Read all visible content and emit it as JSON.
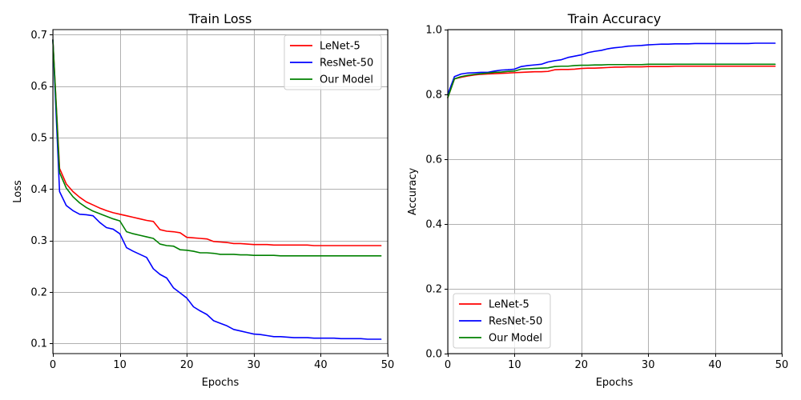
{
  "chart_data": [
    {
      "type": "line",
      "title": "Train Loss",
      "xlabel": "Epochs",
      "ylabel": "Loss",
      "xlim": [
        0,
        50
      ],
      "ylim": [
        0.08,
        0.71
      ],
      "xticks": [
        0,
        10,
        20,
        30,
        40,
        50
      ],
      "yticks": [
        0.1,
        0.2,
        0.3,
        0.4,
        0.5,
        0.6,
        0.7
      ],
      "xtick_labels": [
        "0",
        "10",
        "20",
        "30",
        "40",
        "50"
      ],
      "ytick_labels": [
        "0.1",
        "0.2",
        "0.3",
        "0.4",
        "0.5",
        "0.6",
        "0.7"
      ],
      "grid": true,
      "legend_position": "top-right",
      "x": [
        0,
        1,
        2,
        3,
        4,
        5,
        6,
        7,
        8,
        9,
        10,
        11,
        12,
        13,
        14,
        15,
        16,
        17,
        18,
        19,
        20,
        21,
        22,
        23,
        24,
        25,
        26,
        27,
        28,
        29,
        30,
        31,
        32,
        33,
        34,
        35,
        36,
        37,
        38,
        39,
        40,
        41,
        42,
        43,
        44,
        45,
        46,
        47,
        48,
        49
      ],
      "series": [
        {
          "name": "LeNet-5",
          "color": "#ff0000",
          "values": [
            0.69,
            0.44,
            0.41,
            0.395,
            0.384,
            0.375,
            0.369,
            0.363,
            0.358,
            0.354,
            0.351,
            0.348,
            0.345,
            0.342,
            0.339,
            0.337,
            0.321,
            0.318,
            0.317,
            0.315,
            0.306,
            0.305,
            0.304,
            0.303,
            0.298,
            0.297,
            0.296,
            0.294,
            0.294,
            0.293,
            0.292,
            0.292,
            0.292,
            0.291,
            0.291,
            0.291,
            0.291,
            0.291,
            0.291,
            0.29,
            0.29,
            0.29,
            0.29,
            0.29,
            0.29,
            0.29,
            0.29,
            0.29,
            0.29,
            0.29
          ]
        },
        {
          "name": "ResNet-50",
          "color": "#0000ff",
          "values": [
            0.69,
            0.395,
            0.368,
            0.358,
            0.351,
            0.35,
            0.348,
            0.335,
            0.325,
            0.322,
            0.313,
            0.286,
            0.279,
            0.273,
            0.267,
            0.245,
            0.234,
            0.227,
            0.208,
            0.198,
            0.188,
            0.171,
            0.163,
            0.156,
            0.144,
            0.139,
            0.134,
            0.127,
            0.124,
            0.121,
            0.118,
            0.117,
            0.115,
            0.113,
            0.113,
            0.112,
            0.111,
            0.111,
            0.111,
            0.11,
            0.11,
            0.11,
            0.11,
            0.109,
            0.109,
            0.109,
            0.109,
            0.108,
            0.108,
            0.108
          ]
        },
        {
          "name": "Our Model",
          "color": "#008000",
          "values": [
            0.69,
            0.432,
            0.402,
            0.385,
            0.373,
            0.364,
            0.357,
            0.352,
            0.347,
            0.342,
            0.338,
            0.317,
            0.313,
            0.31,
            0.307,
            0.304,
            0.293,
            0.29,
            0.289,
            0.282,
            0.281,
            0.279,
            0.276,
            0.276,
            0.275,
            0.273,
            0.273,
            0.273,
            0.272,
            0.272,
            0.271,
            0.271,
            0.271,
            0.271,
            0.27,
            0.27,
            0.27,
            0.27,
            0.27,
            0.27,
            0.27,
            0.27,
            0.27,
            0.27,
            0.27,
            0.27,
            0.27,
            0.27,
            0.27,
            0.27
          ]
        }
      ]
    },
    {
      "type": "line",
      "title": "Train Accuracy",
      "xlabel": "Epochs",
      "ylabel": "Accuracy",
      "xlim": [
        0,
        50
      ],
      "ylim": [
        0.0,
        1.0
      ],
      "xticks": [
        0,
        10,
        20,
        30,
        40,
        50
      ],
      "yticks": [
        0.0,
        0.2,
        0.4,
        0.6,
        0.8,
        1.0
      ],
      "xtick_labels": [
        "0",
        "10",
        "20",
        "30",
        "40",
        "50"
      ],
      "ytick_labels": [
        "0.0",
        "0.2",
        "0.4",
        "0.6",
        "0.8",
        "1.0"
      ],
      "grid": true,
      "legend_position": "bottom-left",
      "x": [
        0,
        1,
        2,
        3,
        4,
        5,
        6,
        7,
        8,
        9,
        10,
        11,
        12,
        13,
        14,
        15,
        16,
        17,
        18,
        19,
        20,
        21,
        22,
        23,
        24,
        25,
        26,
        27,
        28,
        29,
        30,
        31,
        32,
        33,
        34,
        35,
        36,
        37,
        38,
        39,
        40,
        41,
        42,
        43,
        44,
        45,
        46,
        47,
        48,
        49
      ],
      "series": [
        {
          "name": "LeNet-5",
          "color": "#ff0000",
          "values": [
            0.79,
            0.848,
            0.853,
            0.857,
            0.86,
            0.862,
            0.863,
            0.864,
            0.865,
            0.866,
            0.867,
            0.868,
            0.869,
            0.87,
            0.87,
            0.871,
            0.876,
            0.877,
            0.877,
            0.878,
            0.88,
            0.881,
            0.881,
            0.882,
            0.883,
            0.884,
            0.884,
            0.885,
            0.885,
            0.885,
            0.886,
            0.886,
            0.886,
            0.886,
            0.887,
            0.887,
            0.887,
            0.887,
            0.887,
            0.887,
            0.887,
            0.887,
            0.887,
            0.887,
            0.887,
            0.887,
            0.887,
            0.887,
            0.887,
            0.887
          ]
        },
        {
          "name": "ResNet-50",
          "color": "#0000ff",
          "values": [
            0.8,
            0.855,
            0.863,
            0.866,
            0.867,
            0.868,
            0.868,
            0.872,
            0.875,
            0.876,
            0.878,
            0.886,
            0.889,
            0.891,
            0.893,
            0.9,
            0.904,
            0.907,
            0.914,
            0.918,
            0.922,
            0.929,
            0.933,
            0.936,
            0.941,
            0.944,
            0.946,
            0.949,
            0.95,
            0.951,
            0.953,
            0.954,
            0.955,
            0.955,
            0.956,
            0.956,
            0.956,
            0.957,
            0.957,
            0.957,
            0.957,
            0.957,
            0.957,
            0.957,
            0.957,
            0.957,
            0.958,
            0.958,
            0.958,
            0.958
          ]
        },
        {
          "name": "Our Model",
          "color": "#008000",
          "values": [
            0.79,
            0.848,
            0.855,
            0.859,
            0.862,
            0.864,
            0.866,
            0.868,
            0.869,
            0.871,
            0.872,
            0.878,
            0.879,
            0.88,
            0.881,
            0.882,
            0.886,
            0.887,
            0.887,
            0.889,
            0.89,
            0.89,
            0.891,
            0.891,
            0.892,
            0.892,
            0.892,
            0.892,
            0.892,
            0.892,
            0.893,
            0.893,
            0.893,
            0.893,
            0.893,
            0.893,
            0.893,
            0.893,
            0.893,
            0.893,
            0.893,
            0.893,
            0.893,
            0.893,
            0.893,
            0.893,
            0.893,
            0.893,
            0.893,
            0.893
          ]
        }
      ]
    }
  ]
}
